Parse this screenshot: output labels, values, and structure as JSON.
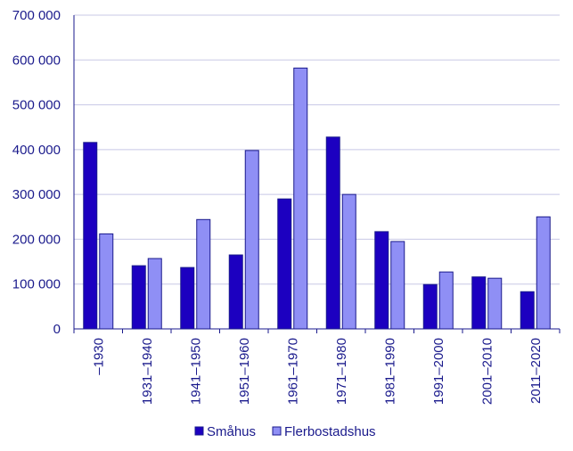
{
  "chart_data": {
    "type": "bar",
    "categories": [
      "–1930",
      "1931–1940",
      "1941–1950",
      "1951–1960",
      "1961–1970",
      "1971–1980",
      "1981–1990",
      "1991–2000",
      "2001–2010",
      "2011–2020"
    ],
    "series": [
      {
        "name": "Småhus",
        "color": "#1c00c0",
        "values": [
          416000,
          141000,
          137000,
          165000,
          290000,
          428000,
          217000,
          99000,
          116000,
          83000
        ]
      },
      {
        "name": "Flerbostadshus",
        "color": "#8f8ff5",
        "values": [
          212000,
          157000,
          244000,
          398000,
          582000,
          300000,
          195000,
          127000,
          113000,
          250000
        ]
      }
    ],
    "yticks": [
      "0",
      "100 000",
      "200 000",
      "300 000",
      "400 000",
      "500 000",
      "600 000",
      "700 000"
    ],
    "ylim": [
      0,
      700000
    ],
    "grid": true,
    "legend": "bottom"
  }
}
